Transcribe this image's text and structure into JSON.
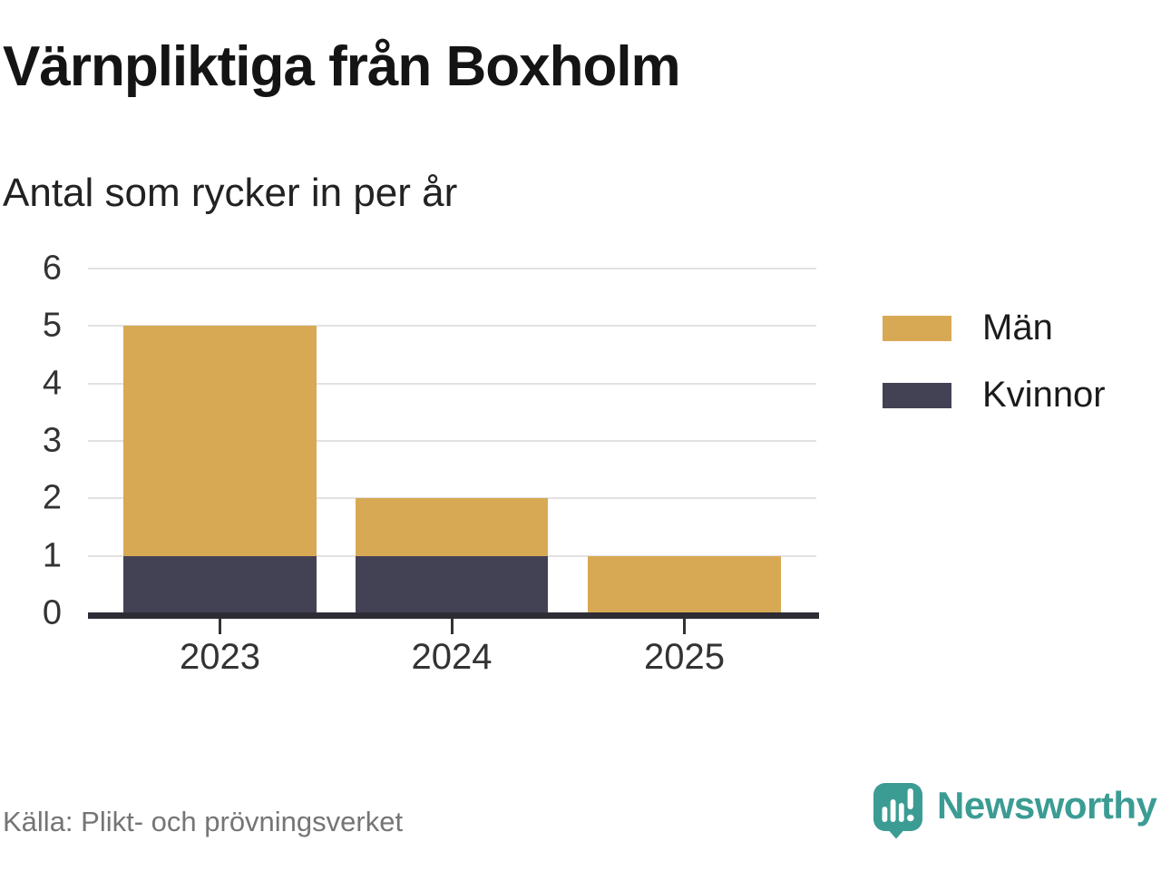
{
  "header": {
    "title": "Värnpliktiga från Boxholm",
    "subtitle": "Antal som rycker in per år"
  },
  "footer": {
    "source": "Källa: Plikt- och prövningsverket",
    "brand_name": "Newsworthy",
    "brand_icon": "newsworthy-speech-bubble-chart-icon"
  },
  "colors": {
    "men": "#d8a954",
    "women": "#434254",
    "gridline": "#e2e2e2",
    "axis": "#2e2d36",
    "tick_text": "#333333",
    "source_text": "#757575",
    "brand_teal": "#3b9c94"
  },
  "chart_data": {
    "type": "bar",
    "stacked": true,
    "title": "Värnpliktiga från Boxholm",
    "subtitle": "Antal som rycker in per år",
    "categories": [
      "2023",
      "2024",
      "2025"
    ],
    "series": [
      {
        "name": "Män",
        "color": "#d8a954",
        "values": [
          4,
          1,
          1
        ]
      },
      {
        "name": "Kvinnor",
        "color": "#434254",
        "values": [
          1,
          1,
          0
        ]
      }
    ],
    "stack_totals": [
      5,
      2,
      1
    ],
    "xlabel": "",
    "ylabel": "",
    "ylim": [
      0,
      6
    ],
    "yticks": [
      0,
      1,
      2,
      3,
      4,
      5,
      6
    ],
    "grid": true,
    "legend_position": "right"
  }
}
